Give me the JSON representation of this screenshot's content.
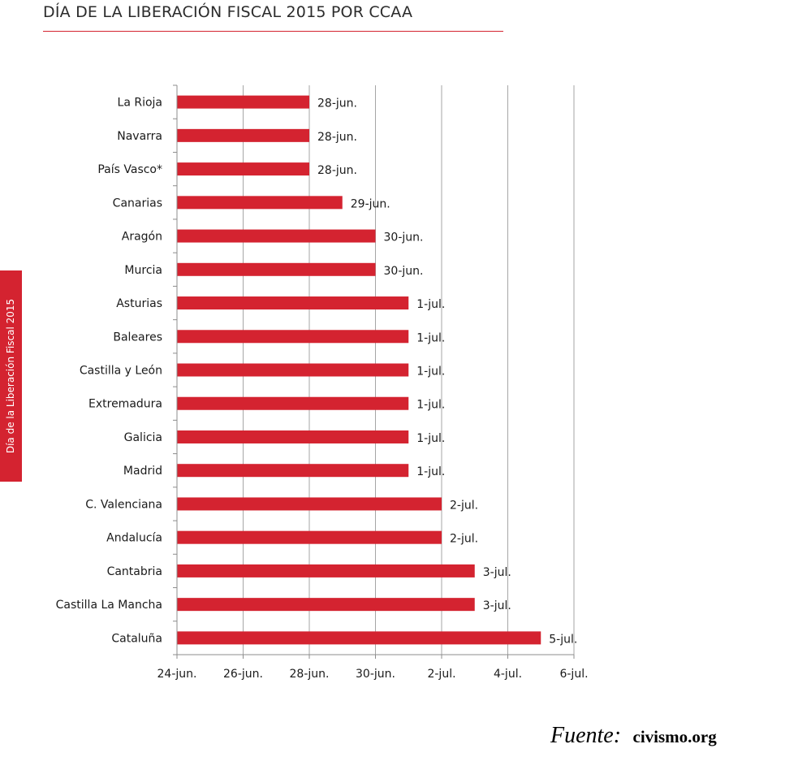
{
  "header": {
    "title": "DÍA DE LA LIBERACIÓN FISCAL 2015 POR CCAA"
  },
  "side_tab": {
    "label": "Día de la Liberación Fiscal 2015",
    "color": "#d42330"
  },
  "source": {
    "label": "Fuente:",
    "site": "civismo.org"
  },
  "chart_data": {
    "type": "bar",
    "orientation": "horizontal",
    "color": "#d42330",
    "grid": "vertical",
    "categories": [
      "La Rioja",
      "Navarra",
      "País Vasco*",
      "Canarias",
      "Aragón",
      "Murcia",
      "Asturias",
      "Baleares",
      "Castilla y León",
      "Extremadura",
      "Galicia",
      "Madrid",
      "C. Valenciana",
      "Andalucía",
      "Cantabria",
      "Castilla La Mancha",
      "Cataluña"
    ],
    "values": [
      "2015-06-28",
      "2015-06-28",
      "2015-06-28",
      "2015-06-29",
      "2015-06-30",
      "2015-06-30",
      "2015-07-01",
      "2015-07-01",
      "2015-07-01",
      "2015-07-01",
      "2015-07-01",
      "2015-07-01",
      "2015-07-02",
      "2015-07-02",
      "2015-07-03",
      "2015-07-03",
      "2015-07-05"
    ],
    "data_labels": [
      "28-jun.",
      "28-jun.",
      "28-jun.",
      "29-jun.",
      "30-jun.",
      "30-jun.",
      "1-jul.",
      "1-jul.",
      "1-jul.",
      "1-jul.",
      "1-jul.",
      "1-jul.",
      "2-jul.",
      "2-jul.",
      "3-jul.",
      "3-jul.",
      "5-jul."
    ],
    "x_ticks": [
      "2015-06-24",
      "2015-06-26",
      "2015-06-28",
      "2015-06-30",
      "2015-07-02",
      "2015-07-04",
      "2015-07-06"
    ],
    "x_tick_labels": [
      "24-jun.",
      "26-jun.",
      "28-jun.",
      "30-jun.",
      "2-jul.",
      "4-jul.",
      "6-jul."
    ],
    "xlim": [
      "2015-06-24",
      "2015-07-06"
    ]
  }
}
